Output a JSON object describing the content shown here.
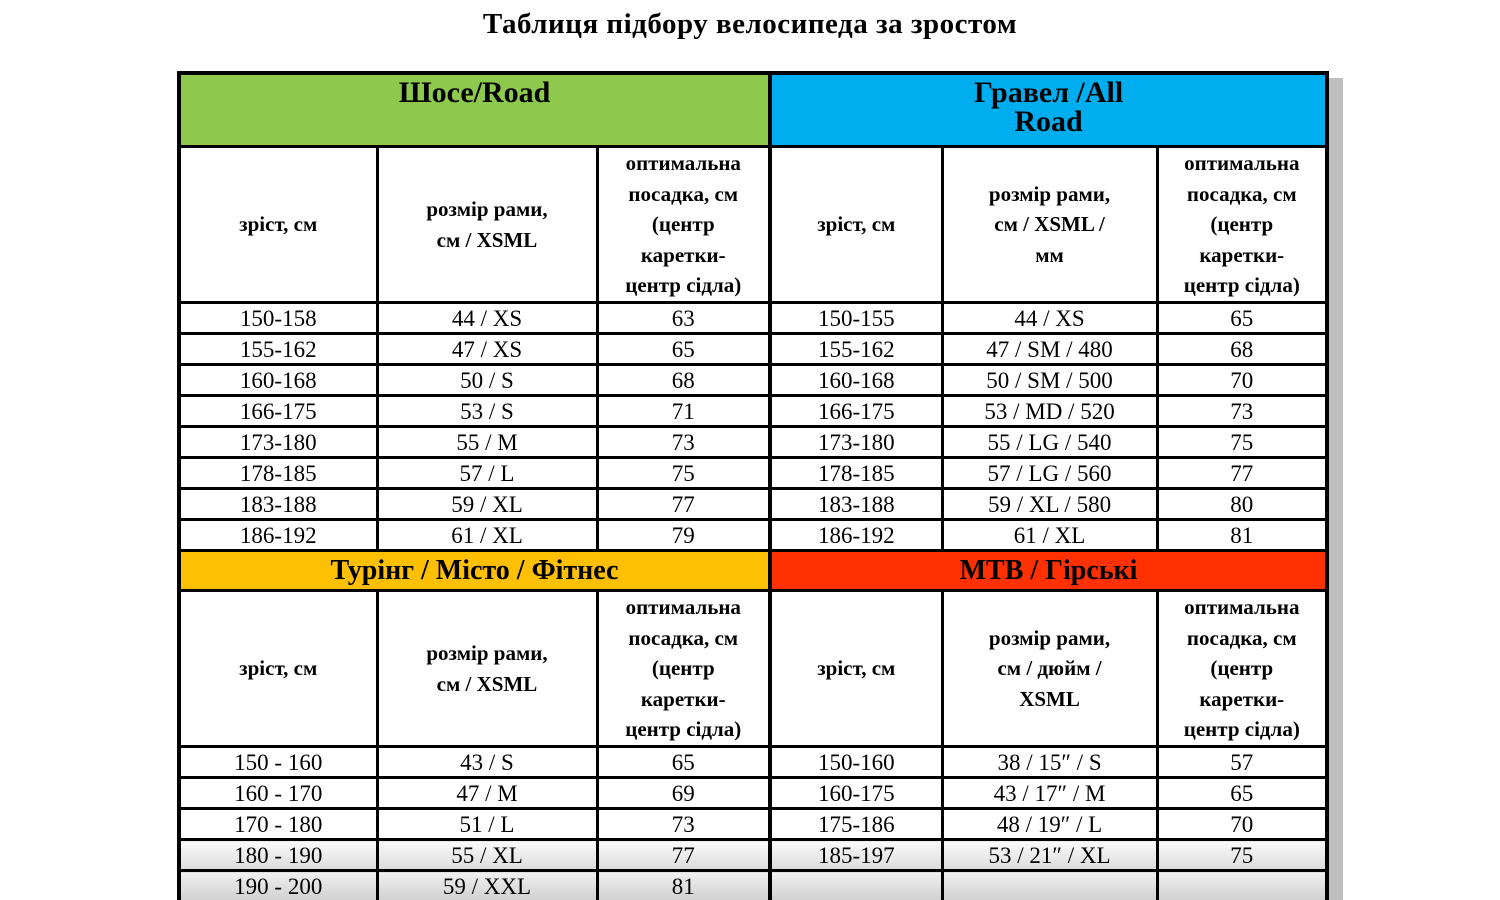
{
  "title": "Таблиця підбору велосипеда за зростом",
  "colors": {
    "road_green": "#8CC94D",
    "gravel_blue": "#00AEEF",
    "touring_yellow": "#FFC003",
    "mtb_red": "#FF3103",
    "shadow_gray": "#BFBFBF"
  },
  "road": {
    "label": "Шосе/Road",
    "col_height": "зріст, см",
    "col_frame": "розмір рами,\nсм / XSML",
    "col_fit": "оптимальна\nпосадка, см\n(центр\nкаретки-\nцентр сідла)",
    "rows": [
      [
        "150-158",
        "44 / XS",
        "63"
      ],
      [
        "155-162",
        "47 / XS",
        "65"
      ],
      [
        "160-168",
        "50 / S",
        "68"
      ],
      [
        "166-175",
        "53 / S",
        "71"
      ],
      [
        "173-180",
        "55 / M",
        "73"
      ],
      [
        "178-185",
        "57 / L",
        "75"
      ],
      [
        "183-188",
        "59 / XL",
        "77"
      ],
      [
        "186-192",
        "61 / XL",
        "79"
      ]
    ]
  },
  "gravel": {
    "label": "Гравел /All\nRoad",
    "col_height": "зріст, см",
    "col_frame": "розмір рами,\nсм / XSML /\nмм",
    "col_fit": "оптимальна\nпосадка, см\n(центр\nкаретки-\nцентр сідла)",
    "rows": [
      [
        "150-155",
        "44 / XS",
        "65"
      ],
      [
        "155-162",
        "47 / SM / 480",
        "68"
      ],
      [
        "160-168",
        "50 / SM / 500",
        "70"
      ],
      [
        "166-175",
        "53 / MD / 520",
        "73"
      ],
      [
        "173-180",
        "55 / LG / 540",
        "75"
      ],
      [
        "178-185",
        "57 / LG / 560",
        "77"
      ],
      [
        "183-188",
        "59 / XL / 580",
        "80"
      ],
      [
        "186-192",
        "61 / XL",
        "81"
      ]
    ]
  },
  "touring": {
    "label": "Турінг / Місто / Фітнес",
    "col_height": "зріст, см",
    "col_frame": "розмір рами,\nсм / XSML",
    "col_fit": "оптимальна\nпосадка, см\n(центр\nкаретки-\nцентр сідла)",
    "rows": [
      [
        "150 - 160",
        "43 / S",
        "65"
      ],
      [
        "160 - 170",
        "47 / M",
        "69"
      ],
      [
        "170 - 180",
        "51 / L",
        "73"
      ],
      [
        "180 - 190",
        "55 / XL",
        "77"
      ],
      [
        "190 - 200",
        "59 / XXL",
        "81"
      ]
    ]
  },
  "mtb": {
    "label": "MTB / Гірські",
    "col_height": "зріст, см",
    "col_frame": "розмір рами,\nсм / дюйм /\nXSML",
    "col_fit": "оптимальна\nпосадка, см\n(центр\nкаретки-\nцентр сідла)",
    "rows": [
      [
        "150-160",
        "38 / 15″ / S",
        "57"
      ],
      [
        "160-175",
        "43 / 17″ / M",
        "65"
      ],
      [
        "175-186",
        "48 / 19″ / L",
        "70"
      ],
      [
        "185-197",
        "53 / 21″ / XL",
        "75"
      ],
      [
        "",
        "",
        ""
      ]
    ]
  }
}
